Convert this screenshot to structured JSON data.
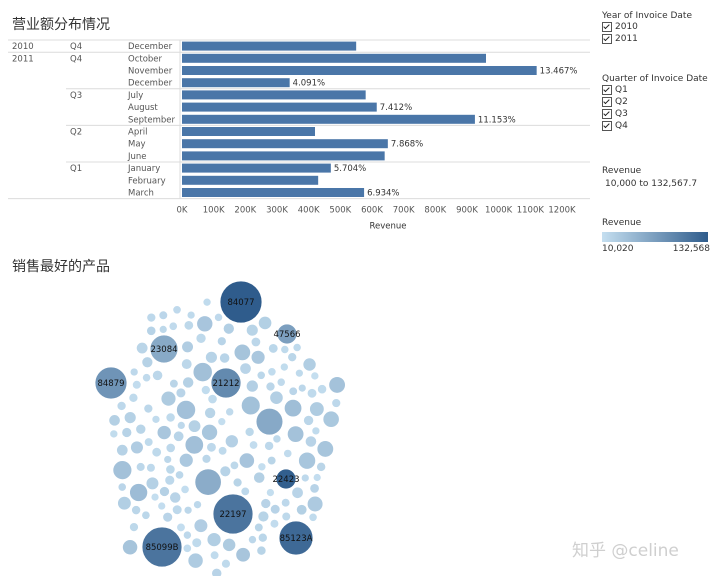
{
  "bar_section": {
    "title": "营业额分布情况",
    "xlabel": "Revenue"
  },
  "bubble_section": {
    "title": "销售最好的产品"
  },
  "filters": {
    "year": {
      "title": "Year of Invoice Date",
      "options": [
        "2010",
        "2011"
      ]
    },
    "quarter": {
      "title": "Quarter of Invoice Date",
      "options": [
        "Q1",
        "Q2",
        "Q3",
        "Q4"
      ]
    },
    "revenue": {
      "title": "Revenue",
      "range_text": "10,000 to 132,567.7"
    },
    "legend": {
      "title": "Revenue",
      "min_label": "10,020",
      "max_label": "132,568",
      "color_low": "#c5dff0",
      "color_high": "#2f5c8c"
    }
  },
  "watermark": "知乎 @celine",
  "chart_data": [
    {
      "type": "bar",
      "orientation": "horizontal",
      "title": "营业额分布情况",
      "xlabel": "Revenue",
      "xlim": [
        0,
        1200000
      ],
      "xticks": [
        "0K",
        "100K",
        "200K",
        "300K",
        "400K",
        "500K",
        "600K",
        "700K",
        "800K",
        "900K",
        "1000K",
        "1100K",
        "1200K"
      ],
      "rows": [
        {
          "year": "2010",
          "quarter": "Q4",
          "month": "December",
          "value": 550000,
          "label": ""
        },
        {
          "year": "2011",
          "quarter": "Q4",
          "month": "October",
          "value": 960000,
          "label": ""
        },
        {
          "year": "",
          "quarter": "",
          "month": "November",
          "value": 1120000,
          "label": "13.467%"
        },
        {
          "year": "",
          "quarter": "",
          "month": "December",
          "value": 340000,
          "label": "4.091%"
        },
        {
          "year": "",
          "quarter": "Q3",
          "month": "July",
          "value": 580000,
          "label": ""
        },
        {
          "year": "",
          "quarter": "",
          "month": "August",
          "value": 615000,
          "label": "7.412%"
        },
        {
          "year": "",
          "quarter": "",
          "month": "September",
          "value": 925000,
          "label": "11.153%"
        },
        {
          "year": "",
          "quarter": "Q2",
          "month": "April",
          "value": 420000,
          "label": ""
        },
        {
          "year": "",
          "quarter": "",
          "month": "May",
          "value": 650000,
          "label": "7.868%"
        },
        {
          "year": "",
          "quarter": "",
          "month": "June",
          "value": 640000,
          "label": ""
        },
        {
          "year": "",
          "quarter": "Q1",
          "month": "January",
          "value": 470000,
          "label": "5.704%"
        },
        {
          "year": "",
          "quarter": "",
          "month": "February",
          "value": 430000,
          "label": ""
        },
        {
          "year": "",
          "quarter": "",
          "month": "March",
          "value": 575000,
          "label": "6.934%"
        }
      ],
      "bar_color": "#4a76a8"
    },
    {
      "type": "scatter",
      "subtype": "packed-bubble",
      "title": "销售最好的产品",
      "labeled_bubbles": [
        {
          "label": "84077",
          "value": 132568
        },
        {
          "label": "47566",
          "value": 70000
        },
        {
          "label": "23084",
          "value": 60000
        },
        {
          "label": "84879",
          "value": 80000
        },
        {
          "label": "21212",
          "value": 90000
        },
        {
          "label": "22423",
          "value": 130000
        },
        {
          "label": "22197",
          "value": 110000
        },
        {
          "label": "85123A",
          "value": 120000
        },
        {
          "label": "85099B",
          "value": 110000
        }
      ]
    }
  ]
}
